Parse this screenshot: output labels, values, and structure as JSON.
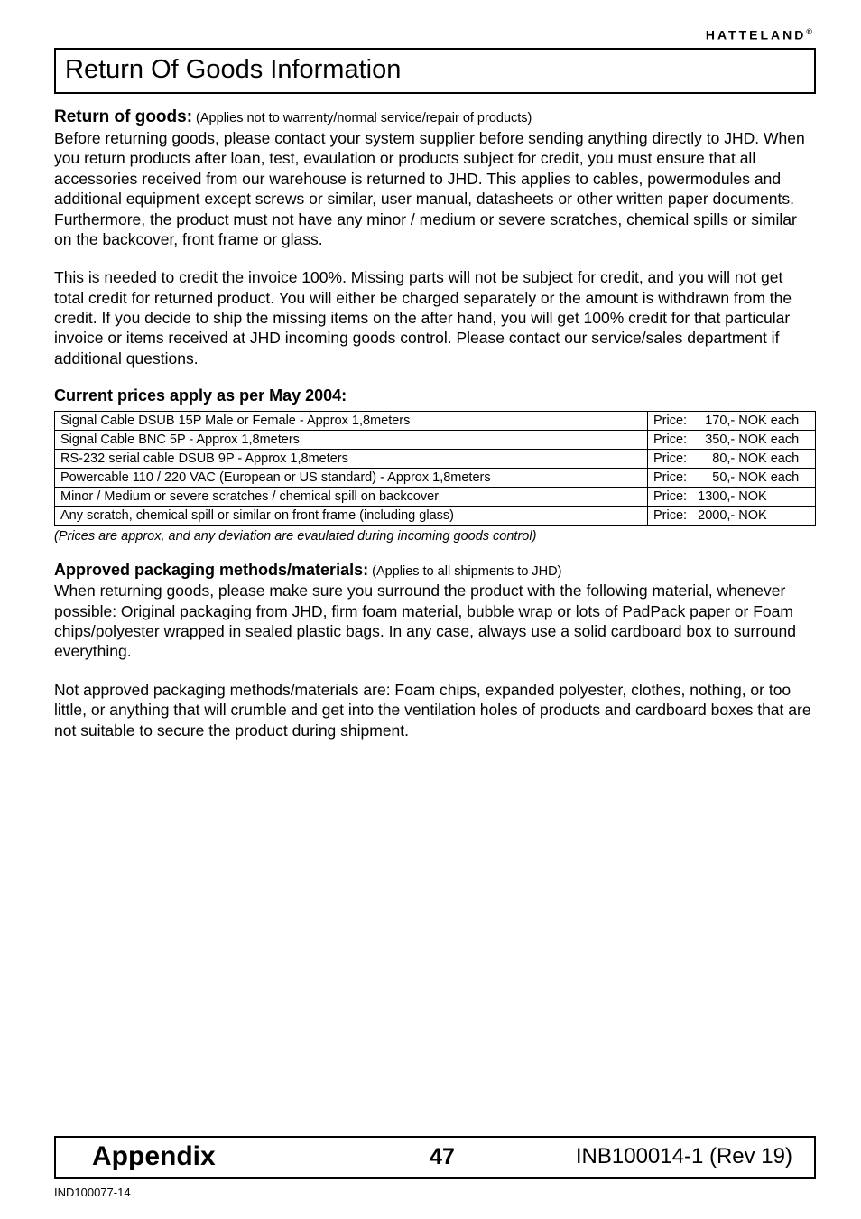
{
  "brand": {
    "name": "HATTELAND",
    "reg": "®"
  },
  "title": "Return Of Goods Information",
  "return_goods": {
    "heading": "Return of goods:",
    "note": " (Applies not to warrenty/normal service/repair of products)",
    "para1": "Before returning goods, please contact your system supplier before sending anything directly to JHD. When you return products after loan, test, evaulation or products subject for credit, you must ensure that all accessories received  from our warehouse is returned to JHD. This applies to cables, powermodules and additional equipment except screws or similar, user manual, datasheets or other written paper documents. Furthermore, the product must not have any minor / medium or severe scratches, chemical spills or similar on the backcover, front frame or glass.",
    "para2": "This is needed to credit the invoice 100%. Missing parts will not be subject for credit, and you will not get total credit for returned product. You will either be charged separately or the amount is withdrawn from the credit. If you decide to ship the missing items on the after hand, you will get 100% credit for that particular invoice or items received at JHD incoming goods control. Please contact our service/sales department if additional questions."
  },
  "prices": {
    "heading": "Current prices apply as per May 2004:",
    "rows": [
      {
        "item": "Signal Cable DSUB 15P Male or Female - Approx 1,8meters",
        "price": "Price:     170,- NOK each"
      },
      {
        "item": "Signal Cable BNC 5P - Approx 1,8meters",
        "price": "Price:     350,- NOK each"
      },
      {
        "item": "RS-232 serial cable DSUB 9P - Approx 1,8meters",
        "price": "Price:       80,- NOK each"
      },
      {
        "item": "Powercable 110 / 220 VAC (European or US standard) - Approx 1,8meters",
        "price": "Price:       50,- NOK each"
      },
      {
        "item": "Minor / Medium or severe scratches / chemical spill on backcover",
        "price": "Price:   1300,- NOK"
      },
      {
        "item": "Any scratch, chemical spill or similar on front frame (including glass)",
        "price": "Price:   2000,- NOK"
      }
    ],
    "footnote": "(Prices are approx, and any deviation are evaulated during incoming goods control)"
  },
  "packaging": {
    "heading": "Approved packaging methods/materials:",
    "note": " (Applies to all shipments to JHD)",
    "para1": "When returning goods, please make sure you surround the product with the following material, whenever possible: Original packaging from JHD, firm foam material, bubble wrap or lots of PadPack paper or Foam chips/polyester wrapped in sealed plastic bags. In any case, always use a solid cardboard box to surround everything.",
    "para2": "Not approved packaging methods/materials are: Foam chips, expanded polyester, clothes, nothing, or too little, or anything that will crumble and get into the ventilation holes of products and cardboard boxes that are not suitable to secure the product during shipment."
  },
  "footer": {
    "appendix": "Appendix",
    "page": "47",
    "docref": "INB100014-1 (Rev 19)",
    "ind": "IND100077-14"
  }
}
